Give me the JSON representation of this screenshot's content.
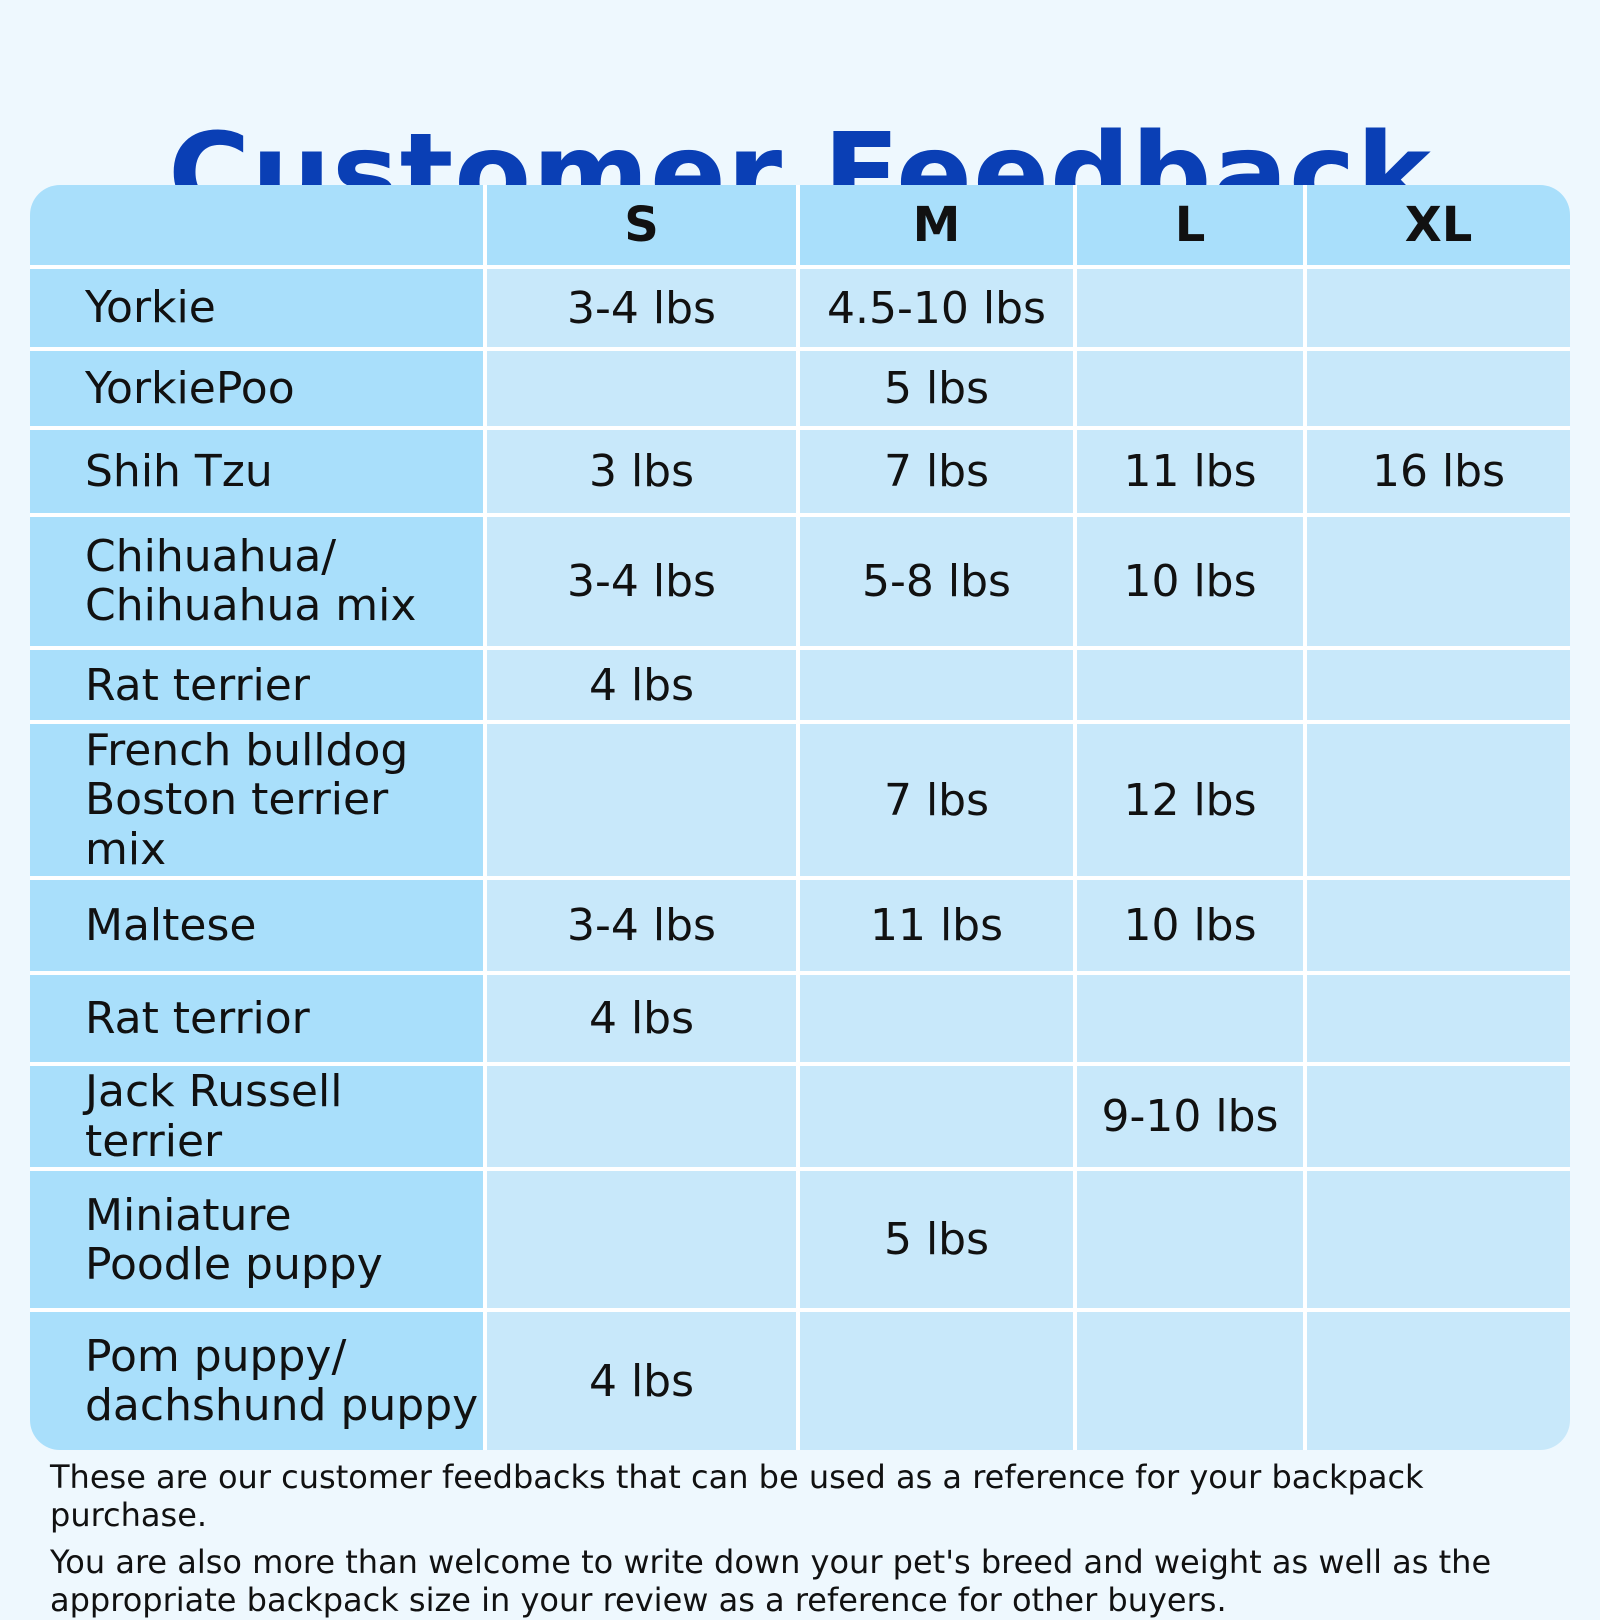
{
  "title": "Customer Feedback",
  "table": {
    "columns": [
      "",
      "S",
      "M",
      "L",
      "XL"
    ],
    "rows": [
      {
        "breed": "Yorkie",
        "s": "3-4 lbs",
        "m": "4.5-10 lbs",
        "l": "",
        "xl": ""
      },
      {
        "breed": "YorkiePoo",
        "s": "",
        "m": "5 lbs",
        "l": "",
        "xl": ""
      },
      {
        "breed": "Shih Tzu",
        "s": "3 lbs",
        "m": "7 lbs",
        "l": "11 lbs",
        "xl": "16 lbs"
      },
      {
        "breed": "Chihuahua/\nChihuahua mix",
        "s": "3-4 lbs",
        "m": "5-8 lbs",
        "l": "10 lbs",
        "xl": ""
      },
      {
        "breed": "Rat terrier",
        "s": "4 lbs",
        "m": "",
        "l": "",
        "xl": ""
      },
      {
        "breed": "French bulldog\nBoston terrier mix",
        "s": "",
        "m": "7 lbs",
        "l": "12 lbs",
        "xl": ""
      },
      {
        "breed": "Maltese",
        "s": "3-4 lbs",
        "m": "11 lbs",
        "l": "10 lbs",
        "xl": ""
      },
      {
        "breed": "Rat terrior",
        "s": "4 lbs",
        "m": "",
        "l": "",
        "xl": ""
      },
      {
        "breed": "Jack Russell terrier",
        "s": "",
        "m": "",
        "l": "9-10 lbs",
        "xl": ""
      },
      {
        "breed": "Miniature\nPoodle puppy",
        "s": "",
        "m": "5 lbs",
        "l": "",
        "xl": ""
      },
      {
        "breed": "Pom puppy/\ndachshund puppy",
        "s": "4 lbs",
        "m": "",
        "l": "",
        "xl": ""
      }
    ]
  },
  "footer": {
    "line1": "These are our customer feedbacks that can be used as a reference for your backpack purchase.",
    "line2": "You are also more than welcome to write down your pet's breed and weight as well as the appropriate backpack size in your review as a reference for other buyers."
  },
  "colors": {
    "title": "#0a3fb5",
    "header_bg": "#a9dffb",
    "breed_bg": "#a9dffb",
    "cell_bg": "#c8e8fa",
    "background": "#eef8fe"
  }
}
